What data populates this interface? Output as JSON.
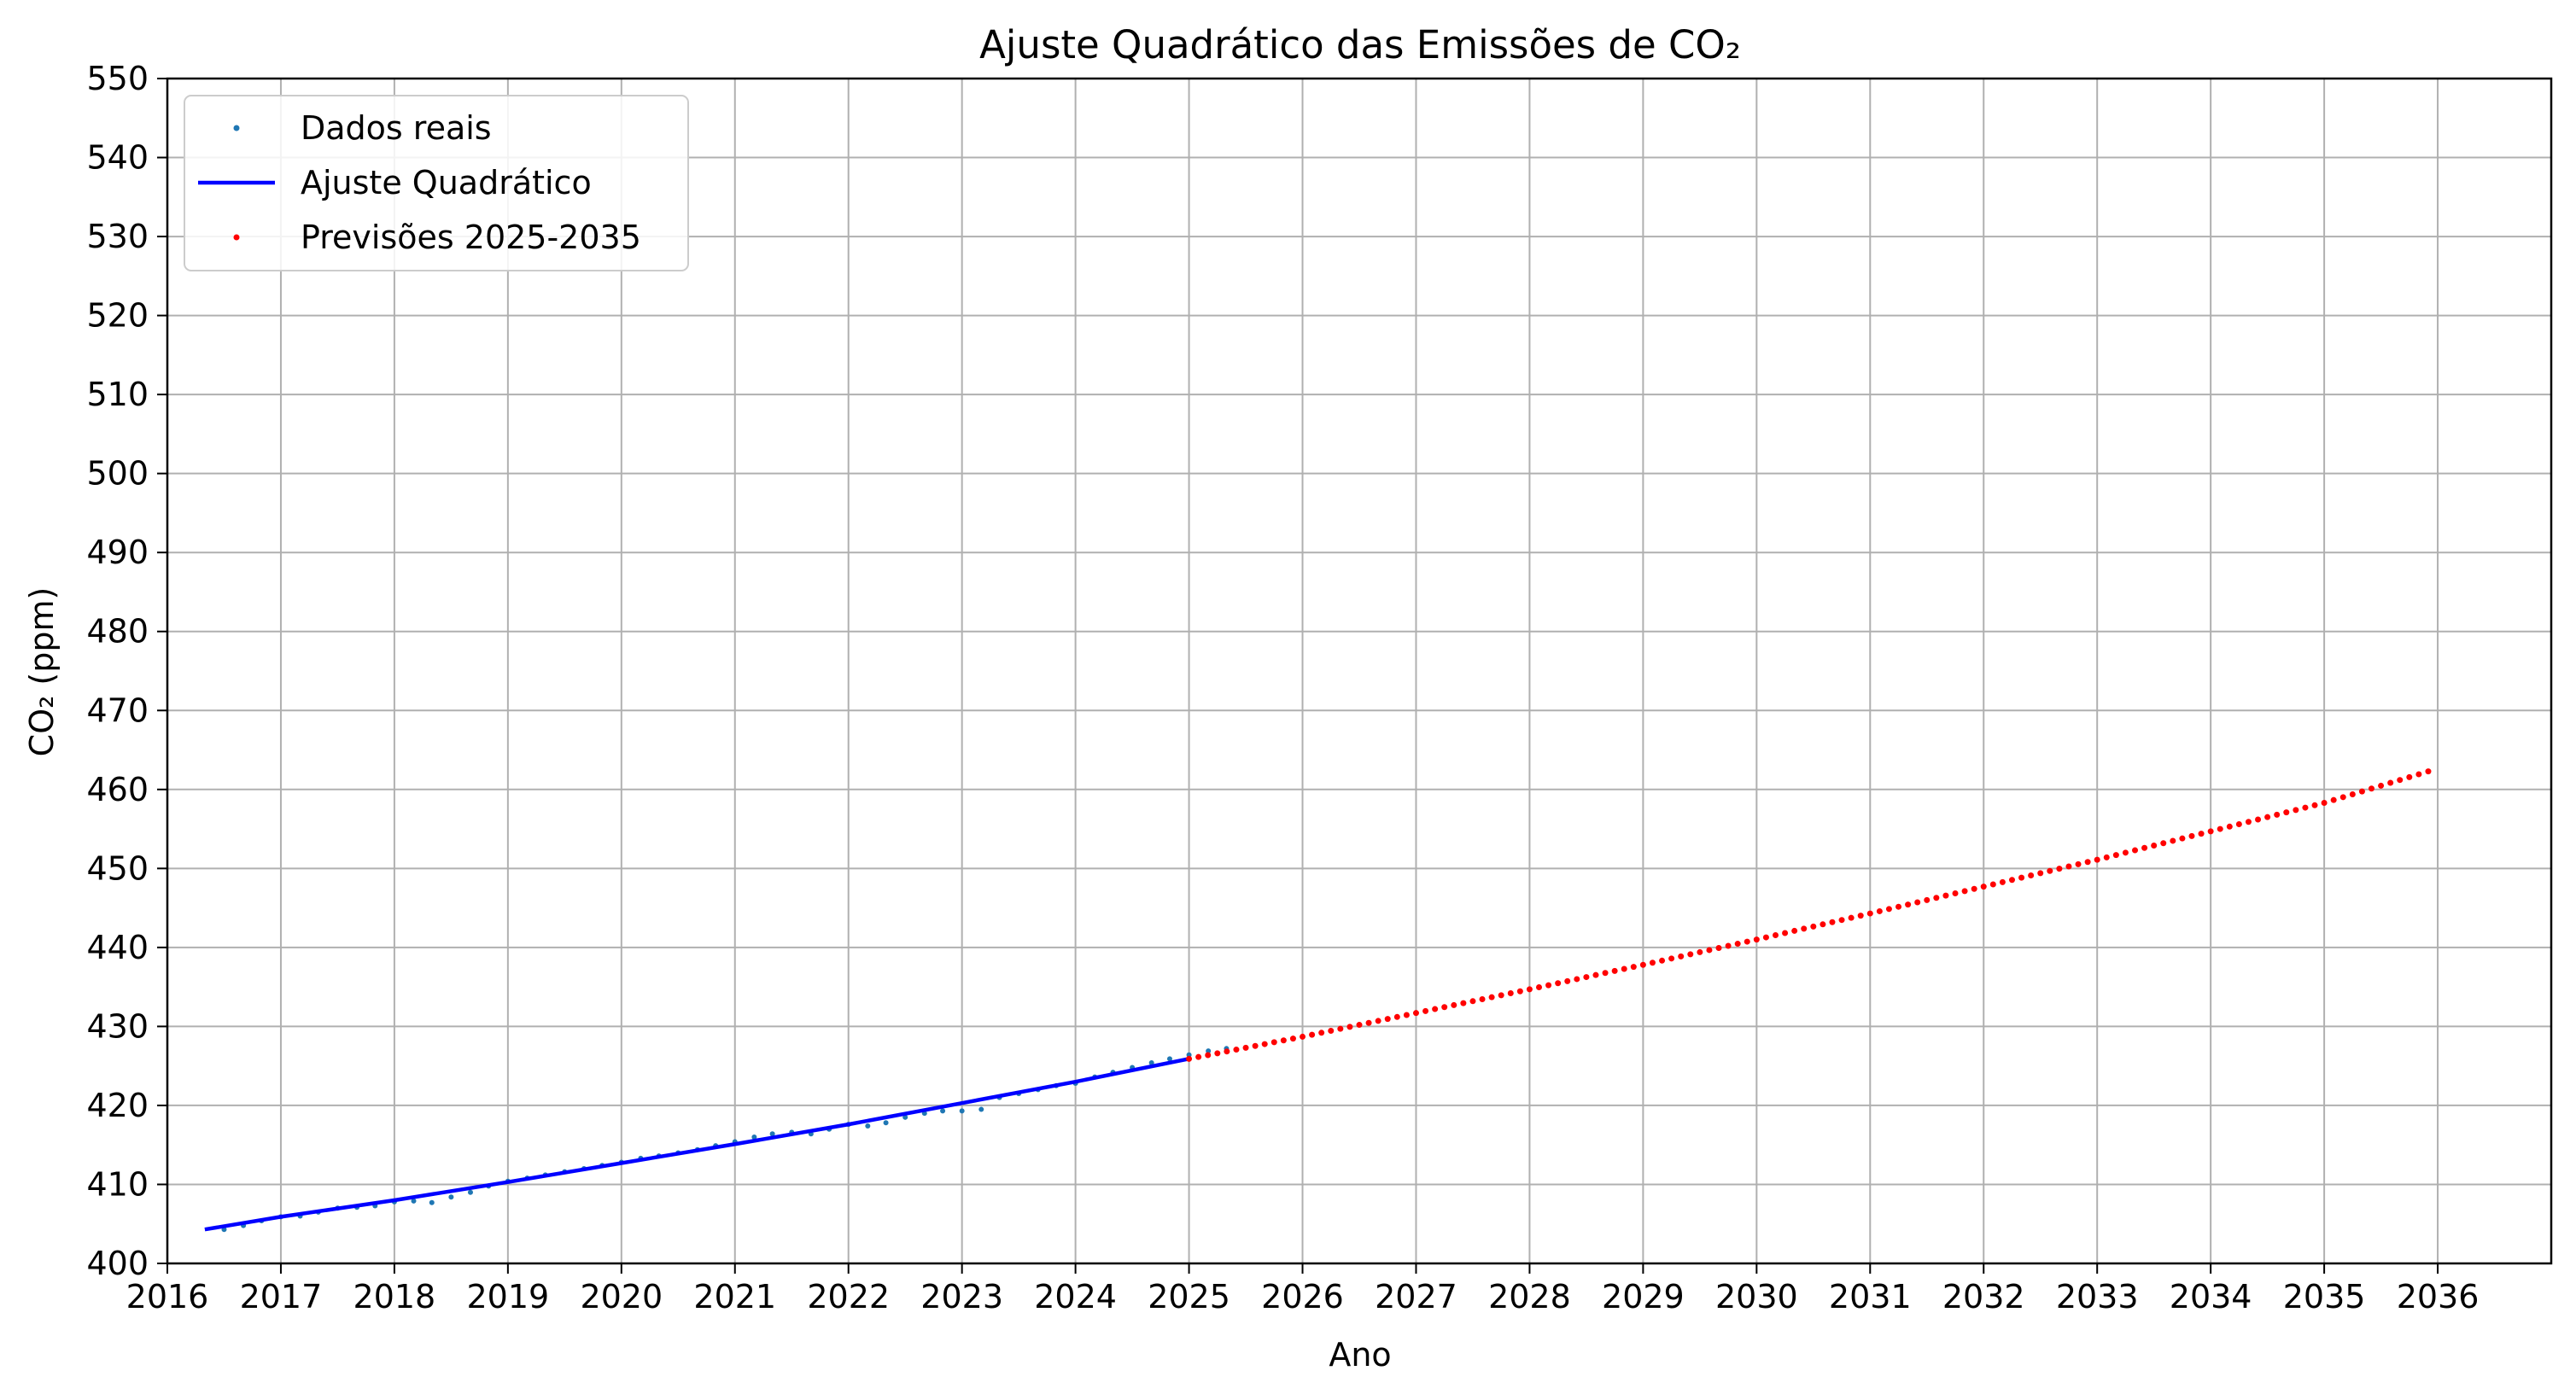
{
  "chart_data": {
    "type": "line",
    "title": "Ajuste Quadrático das Emissões de CO₂",
    "xlabel": "Ano",
    "ylabel": "CO₂ (ppm)",
    "xlim": [
      2016.0,
      2037.0
    ],
    "ylim": [
      400,
      550
    ],
    "x_ticks": [
      2016,
      2017,
      2018,
      2019,
      2020,
      2021,
      2022,
      2023,
      2024,
      2025,
      2026,
      2027,
      2028,
      2029,
      2030,
      2031,
      2032,
      2033,
      2034,
      2035,
      2036
    ],
    "y_ticks": [
      400,
      410,
      420,
      430,
      440,
      450,
      460,
      470,
      480,
      490,
      500,
      510,
      520,
      530,
      540,
      550
    ],
    "grid": true,
    "legend_placement": "top-left",
    "series": [
      {
        "name": "Dados reais",
        "kind": "scatter",
        "color": "#1f77b4",
        "x": [
          2016.5,
          2016.67,
          2016.83,
          2017.0,
          2017.17,
          2017.33,
          2017.5,
          2017.67,
          2017.83,
          2018.0,
          2018.17,
          2018.33,
          2018.5,
          2018.67,
          2018.83,
          2019.0,
          2019.17,
          2019.33,
          2019.5,
          2019.67,
          2019.83,
          2020.0,
          2020.17,
          2020.33,
          2020.5,
          2020.67,
          2020.83,
          2021.0,
          2021.17,
          2021.33,
          2021.5,
          2021.67,
          2021.83,
          2022.0,
          2022.17,
          2022.33,
          2022.5,
          2022.67,
          2022.83,
          2023.0,
          2023.17,
          2023.33,
          2023.5,
          2023.67,
          2023.83,
          2024.0,
          2024.17,
          2024.33,
          2024.5,
          2024.67,
          2024.83,
          2025.0,
          2025.17,
          2025.33
        ],
        "y": [
          404.3,
          404.8,
          405.4,
          405.9,
          406.0,
          406.5,
          407.0,
          407.1,
          407.3,
          407.8,
          407.9,
          407.7,
          408.4,
          409.0,
          409.8,
          410.4,
          410.8,
          411.2,
          411.6,
          412.0,
          412.4,
          412.8,
          413.3,
          413.6,
          414.0,
          414.4,
          414.9,
          415.4,
          416.0,
          416.4,
          416.6,
          416.4,
          417.0,
          417.6,
          417.4,
          417.8,
          418.5,
          419.0,
          419.3,
          419.3,
          419.5,
          421.0,
          421.5,
          422.0,
          422.5,
          422.8,
          423.6,
          424.2,
          424.8,
          425.4,
          425.9,
          426.4,
          426.9,
          427.2
        ]
      },
      {
        "name": "Ajuste Quadrático",
        "kind": "line",
        "color": "#0000ff",
        "x": [
          2016.33,
          2017.0,
          2018.0,
          2019.0,
          2020.0,
          2021.0,
          2022.0,
          2023.0,
          2024.0,
          2025.0
        ],
        "y": [
          404.3,
          405.9,
          408.0,
          410.3,
          412.7,
          415.1,
          417.6,
          420.3,
          423.0,
          425.9
        ]
      },
      {
        "name": "Previsões 2025-2035",
        "kind": "scatter",
        "color": "#ff0000",
        "x": [
          2025.0,
          2026.0,
          2027.0,
          2028.0,
          2029.0,
          2030.0,
          2031.0,
          2032.0,
          2033.0,
          2034.0,
          2035.0,
          2035.92
        ],
        "y": [
          425.9,
          428.7,
          431.7,
          434.7,
          437.8,
          441.0,
          444.3,
          447.7,
          451.1,
          454.7,
          458.3,
          462.3
        ],
        "dense_monthly": true
      }
    ]
  }
}
